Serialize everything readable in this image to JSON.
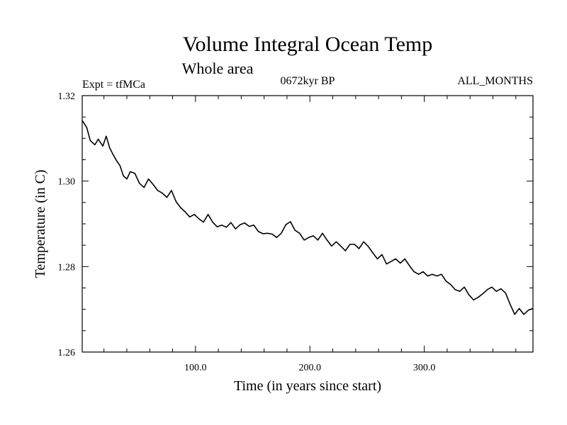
{
  "chart_data": {
    "type": "line",
    "title": "Volume Integral Ocean Temp",
    "subtitle": "Whole area",
    "annotations": {
      "experiment": "Expt = tfMCa",
      "period": "0672kyr BP",
      "months": "ALL_MONTHS"
    },
    "xlabel": "Time (in years since start)",
    "ylabel": "Temperature (in C)",
    "xlim": [
      1,
      395
    ],
    "ylim": [
      1.26,
      1.32
    ],
    "x_ticks": [
      "100.0",
      "200.0",
      "300.0"
    ],
    "y_ticks": [
      "1.26",
      "1.28",
      "1.30",
      "1.32"
    ],
    "grid": false,
    "series": [
      {
        "points": [
          [
            1,
            1.3142
          ],
          [
            5,
            1.3125
          ],
          [
            8,
            1.3095
          ],
          [
            12,
            1.3085
          ],
          [
            15,
            1.3098
          ],
          [
            19,
            1.3082
          ],
          [
            22,
            1.3105
          ],
          [
            25,
            1.3078
          ],
          [
            28,
            1.3062
          ],
          [
            31,
            1.3048
          ],
          [
            34,
            1.3036
          ],
          [
            37,
            1.3012
          ],
          [
            40,
            1.3005
          ],
          [
            43,
            1.3022
          ],
          [
            47,
            1.3018
          ],
          [
            51,
            1.2995
          ],
          [
            55,
            1.2985
          ],
          [
            59,
            1.3005
          ],
          [
            63,
            1.2992
          ],
          [
            67,
            1.2978
          ],
          [
            71,
            1.2972
          ],
          [
            75,
            1.2962
          ],
          [
            79,
            1.2978
          ],
          [
            83,
            1.2952
          ],
          [
            87,
            1.2938
          ],
          [
            91,
            1.2928
          ],
          [
            95,
            1.2916
          ],
          [
            99,
            1.2922
          ],
          [
            103,
            1.2912
          ],
          [
            107,
            1.2904
          ],
          [
            111,
            1.2922
          ],
          [
            115,
            1.2904
          ],
          [
            119,
            1.2893
          ],
          [
            123,
            1.2897
          ],
          [
            127,
            1.2892
          ],
          [
            131,
            1.2903
          ],
          [
            135,
            1.2888
          ],
          [
            139,
            1.2898
          ],
          [
            143,
            1.2902
          ],
          [
            147,
            1.2894
          ],
          [
            151,
            1.2897
          ],
          [
            155,
            1.2882
          ],
          [
            159,
            1.2877
          ],
          [
            163,
            1.2878
          ],
          [
            167,
            1.2876
          ],
          [
            171,
            1.2868
          ],
          [
            175,
            1.2878
          ],
          [
            179,
            1.2898
          ],
          [
            183,
            1.2905
          ],
          [
            187,
            1.2885
          ],
          [
            191,
            1.2878
          ],
          [
            195,
            1.2862
          ],
          [
            199,
            1.2868
          ],
          [
            203,
            1.2872
          ],
          [
            207,
            1.2862
          ],
          [
            211,
            1.2878
          ],
          [
            215,
            1.2862
          ],
          [
            219,
            1.2848
          ],
          [
            223,
            1.2858
          ],
          [
            227,
            1.2848
          ],
          [
            231,
            1.2837
          ],
          [
            235,
            1.2852
          ],
          [
            239,
            1.2852
          ],
          [
            243,
            1.2842
          ],
          [
            247,
            1.2858
          ],
          [
            251,
            1.2847
          ],
          [
            255,
            1.2832
          ],
          [
            259,
            1.2818
          ],
          [
            263,
            1.2828
          ],
          [
            267,
            1.2806
          ],
          [
            271,
            1.2812
          ],
          [
            275,
            1.2818
          ],
          [
            279,
            1.2808
          ],
          [
            283,
            1.2818
          ],
          [
            287,
            1.2802
          ],
          [
            291,
            1.2788
          ],
          [
            295,
            1.2782
          ],
          [
            299,
            1.2788
          ],
          [
            303,
            1.2778
          ],
          [
            307,
            1.2782
          ],
          [
            311,
            1.2778
          ],
          [
            315,
            1.2782
          ],
          [
            319,
            1.2766
          ],
          [
            323,
            1.2758
          ],
          [
            327,
            1.2746
          ],
          [
            331,
            1.2742
          ],
          [
            335,
            1.2752
          ],
          [
            339,
            1.2734
          ],
          [
            343,
            1.2722
          ],
          [
            347,
            1.2728
          ],
          [
            351,
            1.2736
          ],
          [
            355,
            1.2746
          ],
          [
            359,
            1.2752
          ],
          [
            363,
            1.2742
          ],
          [
            367,
            1.2748
          ],
          [
            371,
            1.2738
          ],
          [
            375,
            1.2712
          ],
          [
            379,
            1.2688
          ],
          [
            383,
            1.2702
          ],
          [
            387,
            1.2688
          ],
          [
            391,
            1.2698
          ],
          [
            395,
            1.2702
          ]
        ]
      }
    ]
  }
}
